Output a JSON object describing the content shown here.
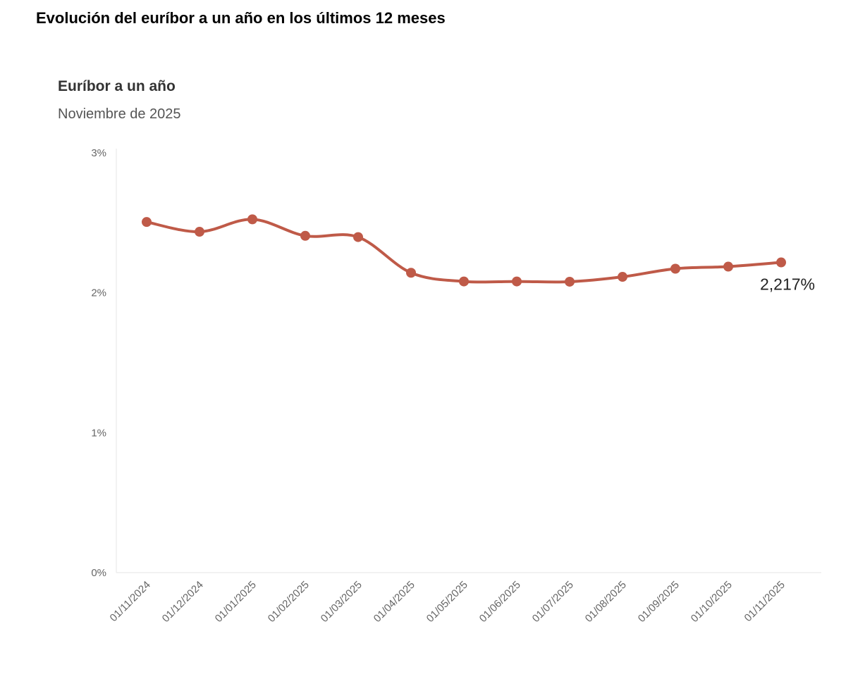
{
  "page_title": "Evolución del euríbor a un año en los últimos 12 meses",
  "chart_data": {
    "type": "line",
    "title": "Euríbor a un año",
    "subtitle": "Noviembre de 2025",
    "xlabel": "",
    "ylabel": "",
    "ylim": [
      0,
      3
    ],
    "y_ticks": [
      "0%",
      "1%",
      "2%",
      "3%"
    ],
    "categories": [
      "01/11/2024",
      "01/12/2024",
      "01/01/2025",
      "01/02/2025",
      "01/03/2025",
      "01/04/2025",
      "01/05/2025",
      "01/06/2025",
      "01/07/2025",
      "01/08/2025",
      "01/09/2025",
      "01/10/2025",
      "01/11/2025"
    ],
    "series": [
      {
        "name": "Euríbor a un año",
        "color": "#bf5a48",
        "values": [
          2.506,
          2.436,
          2.525,
          2.407,
          2.398,
          2.143,
          2.081,
          2.081,
          2.079,
          2.114,
          2.172,
          2.187,
          2.217
        ]
      }
    ],
    "end_label": "2,217%",
    "grid": false
  }
}
